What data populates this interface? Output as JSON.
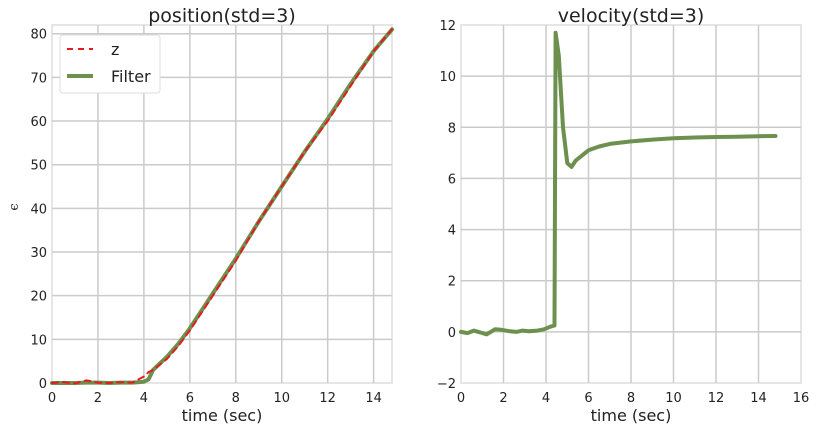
{
  "chart_data": [
    {
      "type": "line",
      "title": "position(std=3)",
      "xlabel": "time (sec)",
      "ylabel": "ϵ",
      "xlim": [
        0,
        14.8
      ],
      "ylim": [
        0,
        82
      ],
      "xticks": [
        0,
        2,
        4,
        6,
        8,
        10,
        12,
        14
      ],
      "yticks": [
        0,
        10,
        20,
        30,
        40,
        50,
        60,
        70,
        80
      ],
      "grid": true,
      "legend": {
        "placement": "top-left",
        "entries": [
          "z",
          "Filter"
        ]
      },
      "series": [
        {
          "name": "z",
          "style": "dashed",
          "color": "#e41a1c",
          "x": [
            0,
            0.5,
            1.0,
            1.5,
            2.0,
            2.5,
            3.0,
            3.5,
            4.0,
            4.2,
            4.4,
            4.6,
            5.0,
            5.5,
            6.0,
            6.5,
            7.0,
            8.0,
            9.0,
            10.0,
            11.0,
            12.0,
            13.0,
            14.0,
            14.8
          ],
          "y": [
            0,
            0.2,
            -0.1,
            0.6,
            0.1,
            0.0,
            0.2,
            0.1,
            1.5,
            2.5,
            3.0,
            3.8,
            5.5,
            8.5,
            12,
            16,
            20,
            28,
            37,
            45,
            53,
            60,
            68,
            76,
            81
          ]
        },
        {
          "name": "Filter",
          "style": "solid",
          "color": "#6d904f",
          "x": [
            0,
            0.5,
            1.0,
            1.5,
            2.0,
            2.5,
            3.0,
            3.5,
            4.0,
            4.2,
            4.4,
            4.6,
            5.0,
            5.5,
            6.0,
            6.5,
            7.0,
            8.0,
            9.0,
            10.0,
            11.0,
            12.0,
            13.0,
            14.0,
            14.8
          ],
          "y": [
            0,
            0.0,
            0.0,
            0.1,
            0.1,
            0.0,
            0.1,
            0.1,
            0.3,
            0.8,
            3.0,
            4.0,
            6.0,
            9.0,
            12.5,
            16.5,
            20.5,
            28.5,
            37,
            45,
            53,
            60.5,
            68.5,
            76,
            81
          ]
        }
      ]
    },
    {
      "type": "line",
      "title": "velocity(std=3)",
      "xlabel": "time (sec)",
      "ylabel": "",
      "xlim": [
        0,
        16
      ],
      "ylim": [
        -2,
        12
      ],
      "xticks": [
        0,
        2,
        4,
        6,
        8,
        10,
        12,
        14,
        16
      ],
      "yticks": [
        -2,
        0,
        2,
        4,
        6,
        8,
        10,
        12
      ],
      "grid": true,
      "series": [
        {
          "color": "#6d904f",
          "x": [
            0,
            0.3,
            0.6,
            0.9,
            1.2,
            1.4,
            1.6,
            1.9,
            2.3,
            2.6,
            2.9,
            3.2,
            3.6,
            3.9,
            4.2,
            4.4,
            4.45,
            4.6,
            4.8,
            5.0,
            5.2,
            5.4,
            5.7,
            6.0,
            6.5,
            7.0,
            7.5,
            8.0,
            9.0,
            10.0,
            11.0,
            12.0,
            13.0,
            14.0,
            14.8
          ],
          "y": [
            0.0,
            -0.05,
            0.05,
            -0.02,
            -0.1,
            0.0,
            0.1,
            0.08,
            0.02,
            0.0,
            0.05,
            0.02,
            0.05,
            0.1,
            0.2,
            0.25,
            11.7,
            10.8,
            8.0,
            6.6,
            6.45,
            6.7,
            6.9,
            7.1,
            7.25,
            7.35,
            7.4,
            7.45,
            7.52,
            7.57,
            7.6,
            7.62,
            7.63,
            7.65,
            7.66
          ]
        }
      ]
    }
  ]
}
